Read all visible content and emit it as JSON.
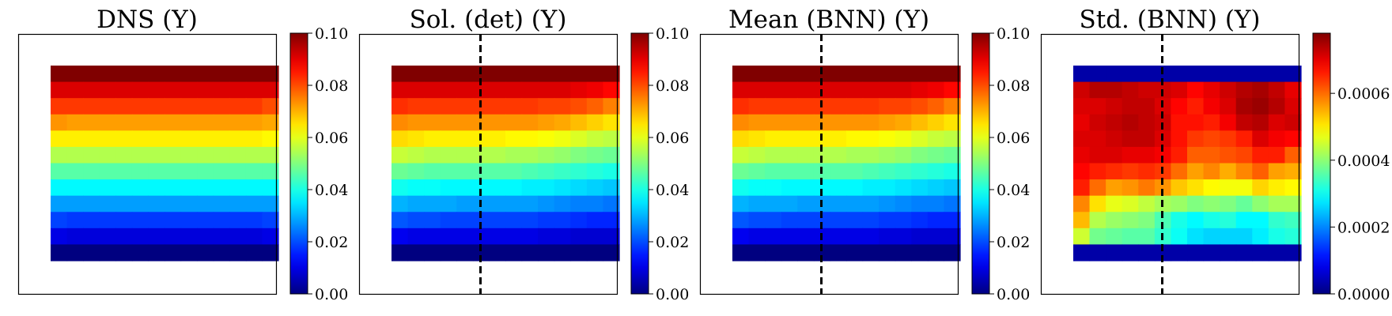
{
  "chart_data": [
    {
      "type": "heatmap",
      "title": "DNS (Y)",
      "colormap": "jet",
      "vmin": 0.0,
      "vmax": 0.1,
      "colorbar_ticks": [
        "0.00",
        "0.02",
        "0.04",
        "0.06",
        "0.08",
        "0.10"
      ],
      "colorbar_tick_values": [
        0.0,
        0.02,
        0.04,
        0.06,
        0.08,
        0.1
      ],
      "dashed_vline": false,
      "grid": [
        [
          0.1,
          0.1,
          0.1,
          0.1,
          0.1,
          0.1,
          0.1,
          0.1,
          0.1,
          0.1,
          0.1,
          0.1,
          0.1,
          0.1
        ],
        [
          0.091,
          0.091,
          0.091,
          0.091,
          0.091,
          0.091,
          0.091,
          0.091,
          0.091,
          0.091,
          0.091,
          0.091,
          0.091,
          0.091
        ],
        [
          0.082,
          0.082,
          0.082,
          0.082,
          0.082,
          0.082,
          0.082,
          0.082,
          0.082,
          0.082,
          0.082,
          0.082,
          0.082,
          0.08
        ],
        [
          0.073,
          0.072,
          0.072,
          0.072,
          0.072,
          0.072,
          0.072,
          0.072,
          0.072,
          0.072,
          0.072,
          0.072,
          0.072,
          0.071
        ],
        [
          0.064,
          0.064,
          0.064,
          0.064,
          0.064,
          0.064,
          0.064,
          0.064,
          0.064,
          0.064,
          0.064,
          0.064,
          0.064,
          0.063
        ],
        [
          0.055,
          0.055,
          0.055,
          0.055,
          0.055,
          0.055,
          0.055,
          0.055,
          0.055,
          0.055,
          0.055,
          0.055,
          0.055,
          0.055
        ],
        [
          0.046,
          0.046,
          0.046,
          0.046,
          0.046,
          0.046,
          0.046,
          0.046,
          0.046,
          0.046,
          0.046,
          0.046,
          0.046,
          0.046
        ],
        [
          0.037,
          0.037,
          0.037,
          0.037,
          0.037,
          0.037,
          0.037,
          0.037,
          0.037,
          0.037,
          0.037,
          0.037,
          0.037,
          0.037
        ],
        [
          0.028,
          0.028,
          0.028,
          0.028,
          0.028,
          0.028,
          0.028,
          0.028,
          0.028,
          0.028,
          0.028,
          0.028,
          0.028,
          0.028
        ],
        [
          0.019,
          0.018,
          0.018,
          0.018,
          0.018,
          0.018,
          0.018,
          0.018,
          0.018,
          0.018,
          0.018,
          0.018,
          0.018,
          0.019
        ],
        [
          0.01,
          0.009,
          0.009,
          0.009,
          0.009,
          0.009,
          0.009,
          0.009,
          0.009,
          0.009,
          0.009,
          0.009,
          0.009,
          0.01
        ],
        [
          0.0,
          0.0,
          0.0,
          0.0,
          0.0,
          0.0,
          0.0,
          0.0,
          0.0,
          0.0,
          0.0,
          0.0,
          0.0,
          0.0
        ]
      ]
    },
    {
      "type": "heatmap",
      "title": "Sol. (det) (Y)",
      "colormap": "jet",
      "vmin": 0.0,
      "vmax": 0.1,
      "colorbar_ticks": [
        "0.00",
        "0.02",
        "0.04",
        "0.06",
        "0.08",
        "0.10"
      ],
      "colorbar_tick_values": [
        0.0,
        0.02,
        0.04,
        0.06,
        0.08,
        0.1
      ],
      "dashed_vline": true,
      "grid": [
        [
          0.1,
          0.1,
          0.1,
          0.1,
          0.1,
          0.1,
          0.1,
          0.1,
          0.1,
          0.1,
          0.1,
          0.1,
          0.1,
          0.1
        ],
        [
          0.091,
          0.091,
          0.091,
          0.091,
          0.091,
          0.091,
          0.091,
          0.091,
          0.091,
          0.091,
          0.091,
          0.09,
          0.089,
          0.087
        ],
        [
          0.083,
          0.082,
          0.082,
          0.082,
          0.082,
          0.082,
          0.082,
          0.082,
          0.082,
          0.081,
          0.081,
          0.08,
          0.078,
          0.075
        ],
        [
          0.074,
          0.073,
          0.073,
          0.073,
          0.073,
          0.073,
          0.073,
          0.073,
          0.073,
          0.072,
          0.071,
          0.069,
          0.067,
          0.065
        ],
        [
          0.066,
          0.065,
          0.064,
          0.064,
          0.064,
          0.064,
          0.064,
          0.063,
          0.063,
          0.062,
          0.061,
          0.059,
          0.057,
          0.056
        ],
        [
          0.057,
          0.056,
          0.055,
          0.055,
          0.055,
          0.055,
          0.055,
          0.054,
          0.054,
          0.053,
          0.052,
          0.05,
          0.049,
          0.048
        ],
        [
          0.048,
          0.047,
          0.046,
          0.046,
          0.046,
          0.046,
          0.046,
          0.046,
          0.045,
          0.044,
          0.043,
          0.042,
          0.041,
          0.04
        ],
        [
          0.039,
          0.038,
          0.038,
          0.037,
          0.037,
          0.037,
          0.037,
          0.037,
          0.036,
          0.036,
          0.035,
          0.034,
          0.033,
          0.032
        ],
        [
          0.03,
          0.029,
          0.029,
          0.029,
          0.028,
          0.028,
          0.028,
          0.028,
          0.028,
          0.027,
          0.026,
          0.025,
          0.025,
          0.024
        ],
        [
          0.021,
          0.02,
          0.02,
          0.019,
          0.019,
          0.019,
          0.019,
          0.019,
          0.019,
          0.018,
          0.018,
          0.017,
          0.016,
          0.016
        ],
        [
          0.011,
          0.01,
          0.01,
          0.01,
          0.01,
          0.01,
          0.01,
          0.01,
          0.01,
          0.009,
          0.009,
          0.008,
          0.008,
          0.008
        ],
        [
          0.0,
          0.0,
          0.0,
          0.0,
          0.0,
          0.0,
          0.0,
          0.0,
          0.0,
          0.0,
          0.0,
          0.0,
          0.0,
          0.0
        ]
      ]
    },
    {
      "type": "heatmap",
      "title": "Mean (BNN) (Y)",
      "colormap": "jet",
      "vmin": 0.0,
      "vmax": 0.1,
      "colorbar_ticks": [
        "0.00",
        "0.02",
        "0.04",
        "0.06",
        "0.08",
        "0.10"
      ],
      "colorbar_tick_values": [
        0.0,
        0.02,
        0.04,
        0.06,
        0.08,
        0.1
      ],
      "dashed_vline": true,
      "grid": [
        [
          0.1,
          0.1,
          0.1,
          0.1,
          0.1,
          0.1,
          0.1,
          0.1,
          0.1,
          0.1,
          0.1,
          0.1,
          0.1,
          0.1
        ],
        [
          0.091,
          0.091,
          0.091,
          0.091,
          0.091,
          0.091,
          0.091,
          0.091,
          0.091,
          0.091,
          0.091,
          0.09,
          0.089,
          0.087
        ],
        [
          0.083,
          0.082,
          0.082,
          0.082,
          0.082,
          0.082,
          0.082,
          0.082,
          0.082,
          0.081,
          0.081,
          0.08,
          0.078,
          0.075
        ],
        [
          0.074,
          0.073,
          0.073,
          0.073,
          0.073,
          0.073,
          0.073,
          0.073,
          0.073,
          0.072,
          0.071,
          0.069,
          0.067,
          0.065
        ],
        [
          0.066,
          0.065,
          0.064,
          0.064,
          0.064,
          0.064,
          0.064,
          0.063,
          0.063,
          0.062,
          0.061,
          0.059,
          0.057,
          0.056
        ],
        [
          0.057,
          0.056,
          0.055,
          0.055,
          0.055,
          0.055,
          0.055,
          0.054,
          0.054,
          0.053,
          0.052,
          0.05,
          0.049,
          0.048
        ],
        [
          0.048,
          0.047,
          0.046,
          0.046,
          0.046,
          0.046,
          0.046,
          0.046,
          0.045,
          0.044,
          0.043,
          0.042,
          0.041,
          0.04
        ],
        [
          0.039,
          0.038,
          0.038,
          0.037,
          0.037,
          0.037,
          0.037,
          0.037,
          0.036,
          0.036,
          0.035,
          0.034,
          0.033,
          0.032
        ],
        [
          0.03,
          0.029,
          0.029,
          0.029,
          0.028,
          0.028,
          0.028,
          0.028,
          0.028,
          0.027,
          0.026,
          0.025,
          0.025,
          0.024
        ],
        [
          0.021,
          0.02,
          0.02,
          0.019,
          0.019,
          0.019,
          0.019,
          0.019,
          0.019,
          0.018,
          0.018,
          0.017,
          0.016,
          0.016
        ],
        [
          0.011,
          0.01,
          0.01,
          0.01,
          0.01,
          0.01,
          0.01,
          0.01,
          0.01,
          0.009,
          0.009,
          0.008,
          0.008,
          0.008
        ],
        [
          0.0,
          0.0,
          0.0,
          0.0,
          0.0,
          0.0,
          0.0,
          0.0,
          0.0,
          0.0,
          0.0,
          0.0,
          0.0,
          0.0
        ]
      ]
    },
    {
      "type": "heatmap",
      "title": "Std. (BNN) (Y)",
      "colormap": "jet",
      "vmin": 0.0,
      "vmax": 0.00078,
      "colorbar_ticks": [
        "0.0000",
        "0.0002",
        "0.0004",
        "0.0006"
      ],
      "colorbar_tick_values": [
        0.0,
        0.0002,
        0.0004,
        0.0006
      ],
      "dashed_vline": true,
      "grid": [
        [
          3e-05,
          3e-05,
          3e-05,
          3e-05,
          3e-05,
          3e-05,
          3e-05,
          3e-05,
          3e-05,
          3e-05,
          3e-05,
          3e-05,
          3e-05,
          3e-05
        ],
        [
          0.00072,
          0.00074,
          0.00074,
          0.00073,
          0.00072,
          0.00072,
          0.00071,
          0.00068,
          0.0007,
          0.00072,
          0.00074,
          0.00075,
          0.00073,
          0.0007
        ],
        [
          0.00071,
          0.00071,
          0.00072,
          0.00073,
          0.00073,
          0.00071,
          0.00068,
          0.00066,
          0.00069,
          0.00071,
          0.00075,
          0.00076,
          0.00074,
          0.00071
        ],
        [
          0.0007,
          0.00072,
          0.00073,
          0.00074,
          0.00073,
          0.00072,
          0.00067,
          0.00067,
          0.00066,
          0.00069,
          0.00073,
          0.00074,
          0.00071,
          0.00072
        ],
        [
          0.00071,
          0.00071,
          0.00072,
          0.00073,
          0.00073,
          0.00071,
          0.00067,
          0.00064,
          0.00063,
          0.00064,
          0.00066,
          0.00071,
          0.00069,
          0.00068
        ],
        [
          0.0007,
          0.00071,
          0.00071,
          0.0007,
          0.0007,
          0.00069,
          0.00066,
          0.00061,
          0.00061,
          0.00062,
          0.00063,
          0.00066,
          0.00066,
          0.00061
        ],
        [
          0.00068,
          0.00066,
          0.00065,
          0.00064,
          0.00065,
          0.00064,
          0.0006,
          0.00056,
          0.00058,
          0.00055,
          0.00058,
          0.00061,
          0.00056,
          0.00055
        ],
        [
          0.00066,
          0.0006,
          0.00056,
          0.00057,
          0.00059,
          0.00057,
          0.00053,
          0.00051,
          0.00049,
          0.00048,
          0.00048,
          0.00052,
          0.0005,
          0.00049
        ],
        [
          0.00058,
          0.00051,
          0.00047,
          0.00046,
          0.00044,
          0.00042,
          0.00041,
          0.00039,
          0.0004,
          0.00039,
          0.00037,
          0.0004,
          0.00042,
          0.00042
        ],
        [
          0.00054,
          0.00043,
          0.00041,
          0.0004,
          0.00039,
          0.00035,
          0.00031,
          0.00029,
          0.00031,
          0.00032,
          0.00029,
          0.00029,
          0.00033,
          0.00034
        ],
        [
          0.00045,
          0.00038,
          0.00037,
          0.00036,
          0.00036,
          0.00033,
          0.0003,
          0.00027,
          0.00026,
          0.00026,
          0.00026,
          0.00028,
          0.00031,
          0.00032
        ],
        [
          3e-05,
          3e-05,
          3e-05,
          3e-05,
          3e-05,
          3e-05,
          3e-05,
          3e-05,
          3e-05,
          3e-05,
          3e-05,
          3e-05,
          3e-05,
          3e-05
        ]
      ]
    }
  ]
}
